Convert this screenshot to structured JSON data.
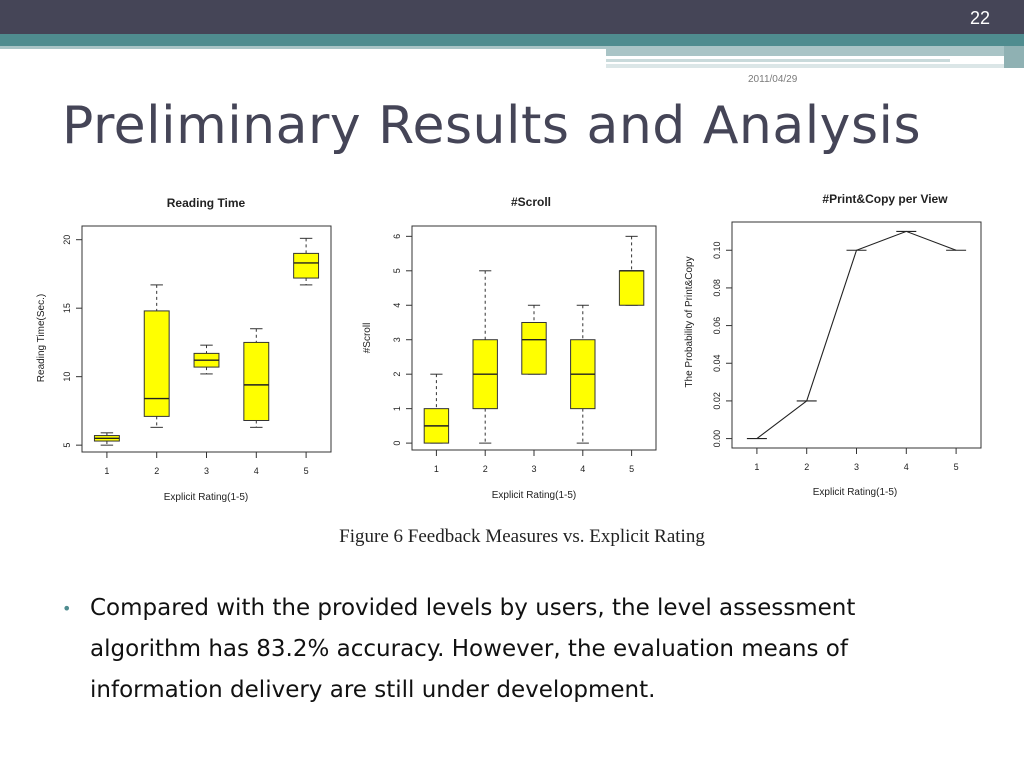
{
  "slide": {
    "number": "22",
    "date": "2011/04/29",
    "title": "Preliminary Results and Analysis",
    "caption": "Figure 6 Feedback Measures vs. Explicit Rating",
    "bullet": "Compared with the provided levels by users, the level assessment algorithm has 83.2% accuracy. However, the evaluation means of information delivery are still under development."
  },
  "colors": {
    "box_fill": "#ffff00",
    "header_dark": "#454557",
    "accent": "#4f8c8f"
  },
  "chart_data": [
    {
      "type": "boxplot",
      "title": "Reading Time",
      "xlabel": "Explicit Rating(1-5)",
      "ylabel": "Reading Time(Sec.)",
      "categories": [
        "1",
        "2",
        "3",
        "4",
        "5"
      ],
      "yticks": [
        5,
        10,
        15,
        20
      ],
      "ylim": [
        4.5,
        21
      ],
      "boxes": [
        {
          "min": 5.0,
          "q1": 5.3,
          "median": 5.5,
          "q3": 5.7,
          "max": 5.9
        },
        {
          "min": 6.3,
          "q1": 7.1,
          "median": 8.4,
          "q3": 14.8,
          "max": 16.7
        },
        {
          "min": 10.2,
          "q1": 10.7,
          "median": 11.2,
          "q3": 11.7,
          "max": 12.3
        },
        {
          "min": 6.3,
          "q1": 6.8,
          "median": 9.4,
          "q3": 12.5,
          "max": 13.5
        },
        {
          "min": 16.7,
          "q1": 17.2,
          "median": 18.3,
          "q3": 19.0,
          "max": 20.1
        }
      ]
    },
    {
      "type": "boxplot",
      "title": "#Scroll",
      "xlabel": "Explicit Rating(1-5)",
      "ylabel": "#Scroll",
      "categories": [
        "1",
        "2",
        "3",
        "4",
        "5"
      ],
      "yticks": [
        0,
        1,
        2,
        3,
        4,
        5,
        6
      ],
      "ylim": [
        -0.2,
        6.3
      ],
      "boxes": [
        {
          "min": 0,
          "q1": 0,
          "median": 0.5,
          "q3": 1,
          "max": 2
        },
        {
          "min": 0,
          "q1": 1,
          "median": 2,
          "q3": 3,
          "max": 5
        },
        {
          "min": 2,
          "q1": 2,
          "median": 3,
          "q3": 3.5,
          "max": 4
        },
        {
          "min": 0,
          "q1": 1,
          "median": 2,
          "q3": 3,
          "max": 4
        },
        {
          "min": 4,
          "q1": 4,
          "median": 5,
          "q3": 5,
          "max": 6
        }
      ]
    },
    {
      "type": "line",
      "title": "#Print&Copy per View",
      "xlabel": "Explicit Rating(1-5)",
      "ylabel": "The Probability of Print&Copy",
      "x": [
        "1",
        "2",
        "3",
        "4",
        "5"
      ],
      "values": [
        0.0,
        0.02,
        0.1,
        0.11,
        0.1
      ],
      "yticks": [
        "0.00",
        "0.02",
        "0.04",
        "0.06",
        "0.08",
        "0.10"
      ],
      "ylim": [
        -0.005,
        0.115
      ]
    }
  ]
}
